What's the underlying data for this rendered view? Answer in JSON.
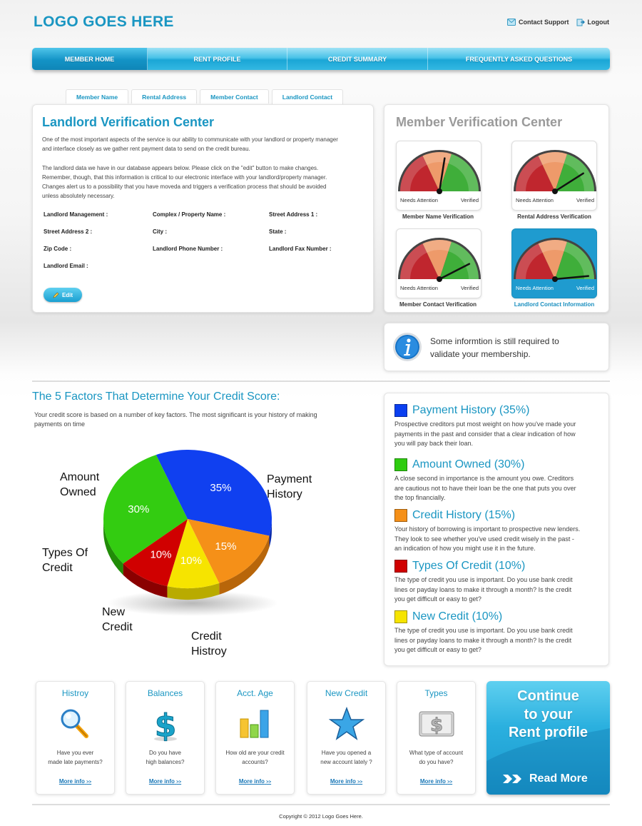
{
  "header": {
    "logo": "LOGO GOES HERE",
    "contact_support": "Contact Support",
    "logout": "Logout"
  },
  "nav": {
    "items": [
      "MEMBER HOME",
      "RENT PROFILE",
      "CREDIT SUMMARY",
      "FREQUENTLY ASKED QUESTIONS"
    ],
    "active_index": 0
  },
  "subtabs": {
    "items": [
      "Member Name",
      "Rental Address",
      "Member Contact",
      "Landlord Contact"
    ],
    "active_index": 3
  },
  "landlord": {
    "title": "Landlord Verification Center",
    "para1_l1": "One of the most important aspects of the service is our ability to communicate with your landlord or property manager",
    "para1_l2": "and interface closely as we gather rent payment data to send on the credit bureau.",
    "para2_l1": "The landlord data we have in our database appears below. Please click on the \"edit\" button to make changes.",
    "para2_l2": "Remember, though, that this information is critical to our electronic interface with your landlord/property manager.",
    "para2_l3": "Changes alert us to a possibility that you have moveda and triggers a verification process that should be avoided",
    "para2_l4": "unless absolutely necessary.",
    "fields": {
      "landlord_management": "Landlord Management :",
      "complex_property_name": "Complex /  Property Name :",
      "street_address_1": "Street Address 1 :",
      "street_address_2": "Street Address 2 :",
      "city": "City :",
      "state": "State :",
      "zip_code": "Zip Code :",
      "landlord_phone": "Landlord Phone Number :",
      "landlord_fax": "Landlord Fax Number :",
      "landlord_email": "Landlord Email :"
    },
    "edit_label": "Edit"
  },
  "member_verification": {
    "title": "Member Verification Center",
    "needs_attention": "Needs Attention",
    "verified": "Verified",
    "gauges": [
      {
        "caption": "Member Name Verification",
        "level": 0.55,
        "active": false
      },
      {
        "caption": "Rental Address Verification",
        "level": 0.82,
        "active": false
      },
      {
        "caption": "Member Contact Verification",
        "level": 0.85,
        "active": false
      },
      {
        "caption": "Landlord Contact Information",
        "level": 0.97,
        "active": true
      }
    ]
  },
  "notice": {
    "line1": "Some informtion is still required to",
    "line2": "validate your membership."
  },
  "factors_section": {
    "title": "The 5 Factors That Determine Your Credit Score:",
    "intro_l1": "Your  credit score is based on a number of key factors. The most significant is your history of making",
    "intro_l2": "payments on time"
  },
  "chart_data": {
    "type": "pie",
    "categories": [
      "Payment History",
      "Credit Histroy",
      "New Credit",
      "Types Of Credit",
      "Amount Owned"
    ],
    "values": [
      35,
      15,
      10,
      10,
      30
    ],
    "value_labels": [
      "35%",
      "15%",
      "10%",
      "10%",
      "30%"
    ],
    "colors": [
      "#1040f0",
      "#f59018",
      "#f6e400",
      "#d00000",
      "#33cc11"
    ],
    "outer_labels": {
      "payment_history_l1": "Payment",
      "payment_history_l2": "History",
      "amount_owned_l1": "Amount",
      "amount_owned_l2": "Owned",
      "types_credit_l1": "Types Of",
      "types_credit_l2": "Credit",
      "new_credit_l1": "New",
      "new_credit_l2": "Credit",
      "credit_history_l1": "Credit",
      "credit_history_l2": "Histroy"
    }
  },
  "factors": [
    {
      "title": "Payment History (35%)",
      "color": "#0a3ff0",
      "lines": [
        "Prospective creditors put most weight on how  you've made your",
        "payments in the past and consider that a clear indication of how",
        "you will pay back their loan."
      ]
    },
    {
      "title": "Amount Owned (30%)",
      "color": "#2fcc10",
      "lines": [
        "A close second in importance is the amount you owe. Creditors",
        "are cautious not to have their loan be the one that puts you over",
        "the top financially."
      ]
    },
    {
      "title": "Credit History (15%)",
      "color": "#f59018",
      "lines": [
        "Your history of borrowing is important to prospective new lenders.",
        "They look to see whether you've used credit wisely in the past -",
        "an indication of how you might use it in the future."
      ]
    },
    {
      "title": "Types Of Credit (10%)",
      "color": "#d00000",
      "lines": [
        "The type of credit you use is important. Do you use bank credit",
        "lines or payday loans to make it through a month? Is the credit",
        "you get difficult or easy to get?"
      ]
    },
    {
      "title": "New Credit (10%)",
      "color": "#f6e400",
      "lines": [
        "The type of credit you use is important. Do you use bank credit",
        "lines or payday loans to make it through a month? Is the credit",
        "you get difficult or easy to get?"
      ]
    }
  ],
  "boxes": [
    {
      "title": "Histroy",
      "icon": "magnifier-icon",
      "l1": "Have you ever",
      "l2": "made late payments?",
      "more": "More info",
      "arrow": ">>"
    },
    {
      "title": "Balances",
      "icon": "dollar-icon",
      "l1": "Do you have",
      "l2": "high balances?",
      "more": "More info",
      "arrow": ">>"
    },
    {
      "title": "Acct. Age",
      "icon": "bar-chart-icon",
      "l1": "How old are your credit",
      "l2": "accounts?",
      "more": "More info",
      "arrow": ">>"
    },
    {
      "title": "New Credit",
      "icon": "star-icon",
      "l1": "Have you opened a",
      "l2": "new account lately ?",
      "more": "More info",
      "arrow": ">>"
    },
    {
      "title": "Types",
      "icon": "card-icon",
      "l1": "What type of account",
      "l2": "do you have?",
      "more": "More info",
      "arrow": ">>"
    }
  ],
  "cta": {
    "l1": "Continue",
    "l2": "to your",
    "l3": "Rent profile",
    "read_more": "Read More"
  },
  "footer": "Copyright © 2012 Logo Goes Here."
}
